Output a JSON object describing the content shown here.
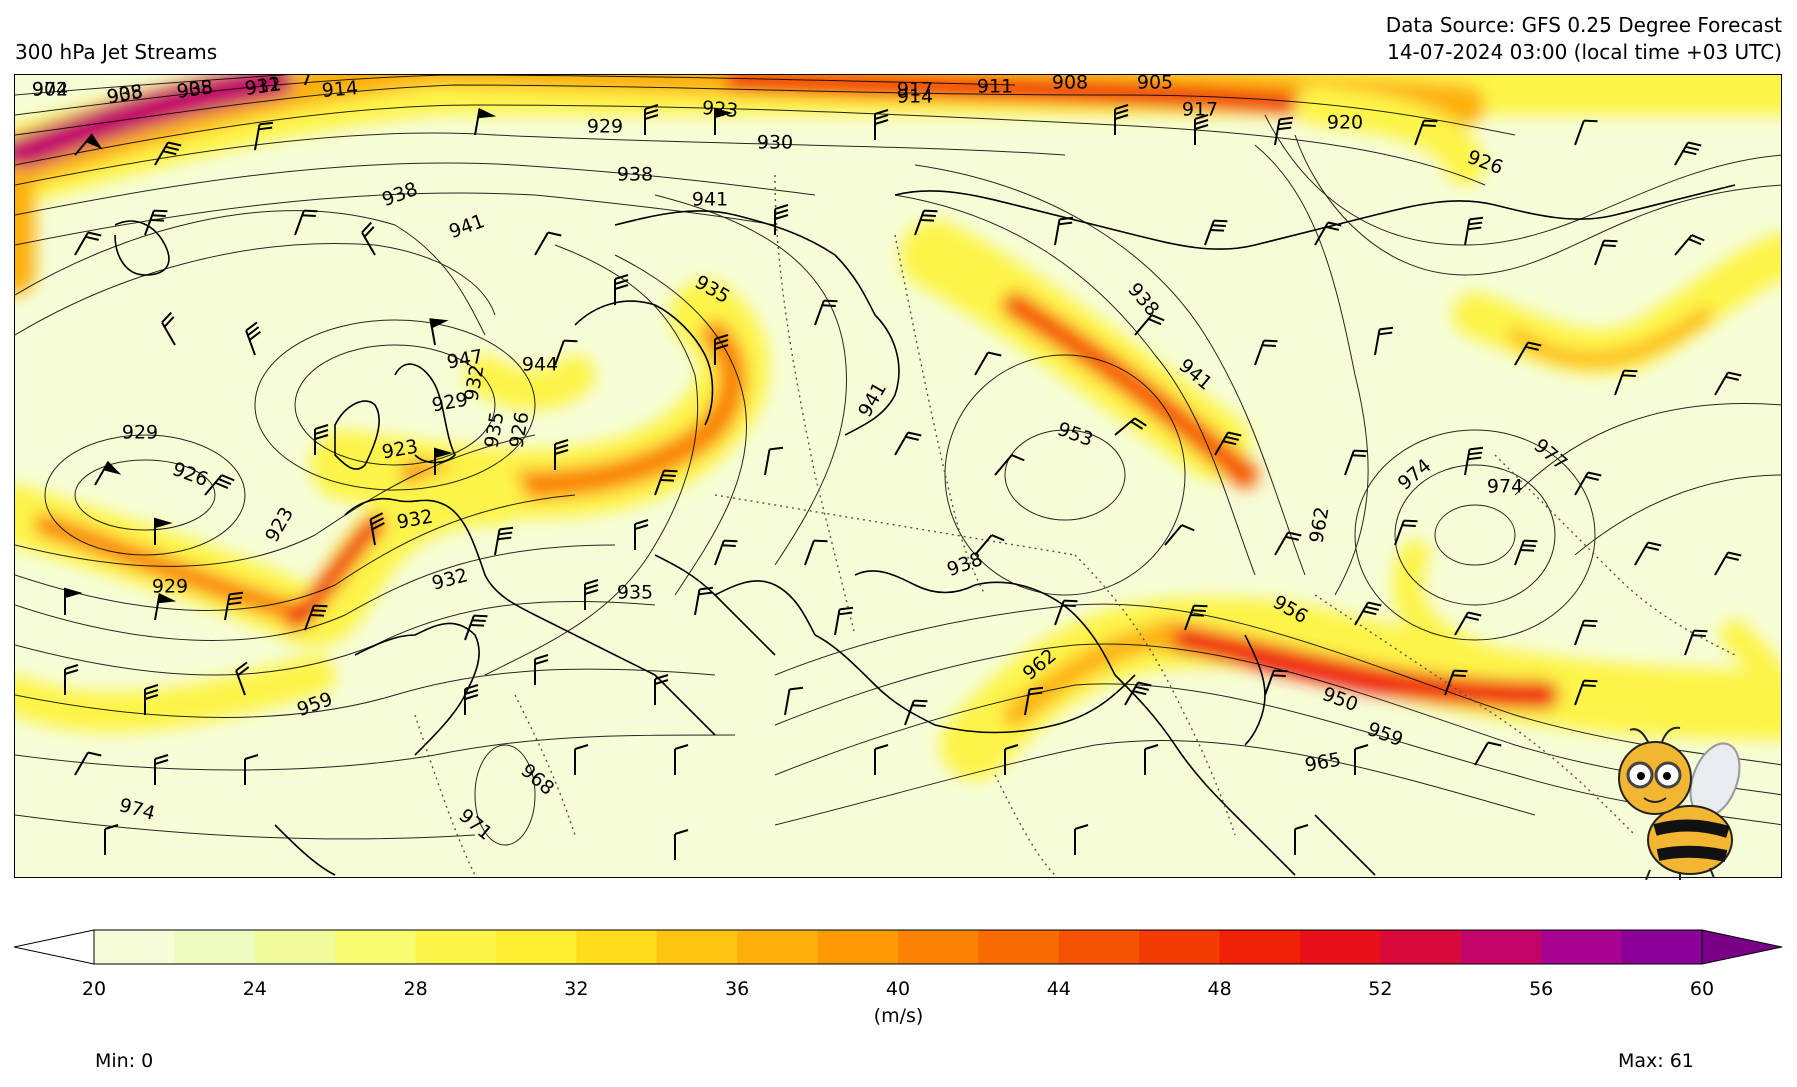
{
  "header": {
    "left_title": "300 hPa Jet Streams",
    "right_title_line1": "Data Source: GFS 0.25 Degree Forecast",
    "right_title_line2": "14-07-2024 03:00 (local time +03 UTC)"
  },
  "map": {
    "description_type": "weather map",
    "contour_labels": [
      "902",
      "905",
      "908",
      "911",
      "914",
      "917",
      "911",
      "908",
      "905",
      "914",
      "923",
      "929",
      "917",
      "920",
      "926",
      "930",
      "938",
      "938",
      "941",
      "941",
      "935",
      "938",
      "941",
      "944",
      "947",
      "929",
      "932",
      "935",
      "926",
      "923",
      "929",
      "926",
      "923",
      "932",
      "932",
      "929",
      "935",
      "941",
      "953",
      "938",
      "962",
      "956",
      "962",
      "959",
      "950",
      "959",
      "965",
      "968",
      "971",
      "974",
      "977",
      "974",
      "974",
      "974",
      "938",
      "935",
      "932"
    ],
    "land_color": "#000000",
    "contour_color": "#000000"
  },
  "colorbar": {
    "unit": "(m/s)",
    "ticks": [
      "20",
      "24",
      "28",
      "32",
      "36",
      "40",
      "44",
      "48",
      "52",
      "56",
      "60"
    ],
    "levels": [
      20,
      22,
      24,
      26,
      28,
      30,
      32,
      34,
      36,
      38,
      40,
      42,
      44,
      46,
      48,
      50,
      52,
      54,
      56,
      58,
      60
    ],
    "colors": [
      "#f6fdd6",
      "#eefcc1",
      "#f2fb9c",
      "#f8fa70",
      "#fdf44a",
      "#feec30",
      "#fedb1b",
      "#fdc512",
      "#fdb00a",
      "#fd9a05",
      "#fb8203",
      "#f86a02",
      "#f55303",
      "#f23c04",
      "#ef2208",
      "#e8101a",
      "#d80a3c",
      "#c3056a",
      "#a80390",
      "#8b0096"
    ],
    "over_color": "#7a0086",
    "under_color": "#ffffff"
  },
  "stats": {
    "min": "Min: 0",
    "max": "Max: 61"
  },
  "logo": {
    "icon": "bee-mascot-icon"
  }
}
